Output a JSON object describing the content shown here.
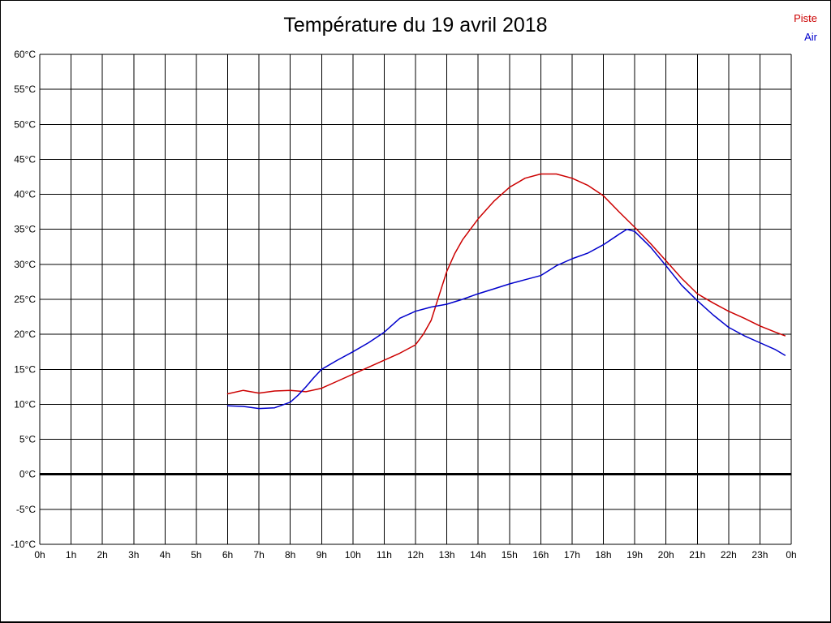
{
  "title": "Température du 19 avril 2018",
  "legend": {
    "piste": "Piste",
    "air": "Air"
  },
  "colors": {
    "piste": "#cc0000",
    "air": "#0000cc",
    "grid": "#000000",
    "zero_line": "#000000"
  },
  "chart_data": {
    "type": "line",
    "title": "Température du 19 avril 2018",
    "xlabel": "",
    "ylabel": "",
    "ylim": [
      -10,
      60
    ],
    "y_tick_step": 5,
    "x_range_hours": [
      0,
      24
    ],
    "grid": true,
    "legend_position": "top-right",
    "y_tick_labels": [
      "60°C",
      "55°C",
      "50°C",
      "45°C",
      "40°C",
      "35°C",
      "30°C",
      "25°C",
      "20°C",
      "15°C",
      "10°C",
      "5°C",
      "0°C",
      "-5°C",
      "-10°C"
    ],
    "x_tick_labels": [
      "0h",
      "1h",
      "2h",
      "3h",
      "4h",
      "5h",
      "6h",
      "7h",
      "8h",
      "9h",
      "10h",
      "11h",
      "12h",
      "13h",
      "14h",
      "15h",
      "16h",
      "17h",
      "18h",
      "19h",
      "20h",
      "21h",
      "22h",
      "23h",
      "0h"
    ],
    "series": [
      {
        "name": "Piste",
        "color": "#cc0000",
        "points": [
          [
            6,
            11.5
          ],
          [
            6.5,
            12
          ],
          [
            7,
            11.6
          ],
          [
            7.5,
            11.9
          ],
          [
            8,
            12
          ],
          [
            8.5,
            11.8
          ],
          [
            9,
            12.3
          ],
          [
            9.5,
            13.3
          ],
          [
            10,
            14.3
          ],
          [
            10.5,
            15.3
          ],
          [
            11,
            16.3
          ],
          [
            11.5,
            17.3
          ],
          [
            12,
            18.5
          ],
          [
            12.25,
            20
          ],
          [
            12.5,
            22
          ],
          [
            12.75,
            25.5
          ],
          [
            13,
            29
          ],
          [
            13.25,
            31.5
          ],
          [
            13.5,
            33.5
          ],
          [
            14,
            36.5
          ],
          [
            14.5,
            39
          ],
          [
            15,
            41
          ],
          [
            15.5,
            42.3
          ],
          [
            16,
            42.9
          ],
          [
            16.5,
            42.9
          ],
          [
            17,
            42.3
          ],
          [
            17.5,
            41.3
          ],
          [
            18,
            39.8
          ],
          [
            18.5,
            37.5
          ],
          [
            19,
            35.3
          ],
          [
            19.5,
            33
          ],
          [
            20,
            30.5
          ],
          [
            20.5,
            28
          ],
          [
            21,
            25.8
          ],
          [
            21.5,
            24.5
          ],
          [
            22,
            23.3
          ],
          [
            22.5,
            22.3
          ],
          [
            23,
            21.2
          ],
          [
            23.5,
            20.3
          ],
          [
            23.8,
            19.8
          ]
        ]
      },
      {
        "name": "Air",
        "color": "#0000cc",
        "points": [
          [
            6,
            9.8
          ],
          [
            6.5,
            9.7
          ],
          [
            7,
            9.4
          ],
          [
            7.5,
            9.5
          ],
          [
            8,
            10.3
          ],
          [
            8.25,
            11.3
          ],
          [
            8.5,
            12.5
          ],
          [
            8.75,
            13.8
          ],
          [
            9,
            15
          ],
          [
            9.5,
            16.3
          ],
          [
            10,
            17.5
          ],
          [
            10.5,
            18.8
          ],
          [
            11,
            20.3
          ],
          [
            11.5,
            22.3
          ],
          [
            12,
            23.3
          ],
          [
            12.5,
            23.9
          ],
          [
            13,
            24.3
          ],
          [
            13.5,
            25
          ],
          [
            14,
            25.8
          ],
          [
            14.5,
            26.5
          ],
          [
            15,
            27.2
          ],
          [
            15.5,
            27.8
          ],
          [
            16,
            28.4
          ],
          [
            16.5,
            29.8
          ],
          [
            17,
            30.8
          ],
          [
            17.5,
            31.6
          ],
          [
            18,
            32.8
          ],
          [
            18.5,
            34.3
          ],
          [
            18.75,
            35
          ],
          [
            19,
            34.7
          ],
          [
            19.5,
            32.5
          ],
          [
            20,
            29.8
          ],
          [
            20.5,
            27
          ],
          [
            21,
            24.8
          ],
          [
            21.5,
            22.8
          ],
          [
            22,
            21
          ],
          [
            22.5,
            19.8
          ],
          [
            23,
            18.8
          ],
          [
            23.5,
            17.8
          ],
          [
            23.8,
            17
          ]
        ]
      }
    ]
  }
}
